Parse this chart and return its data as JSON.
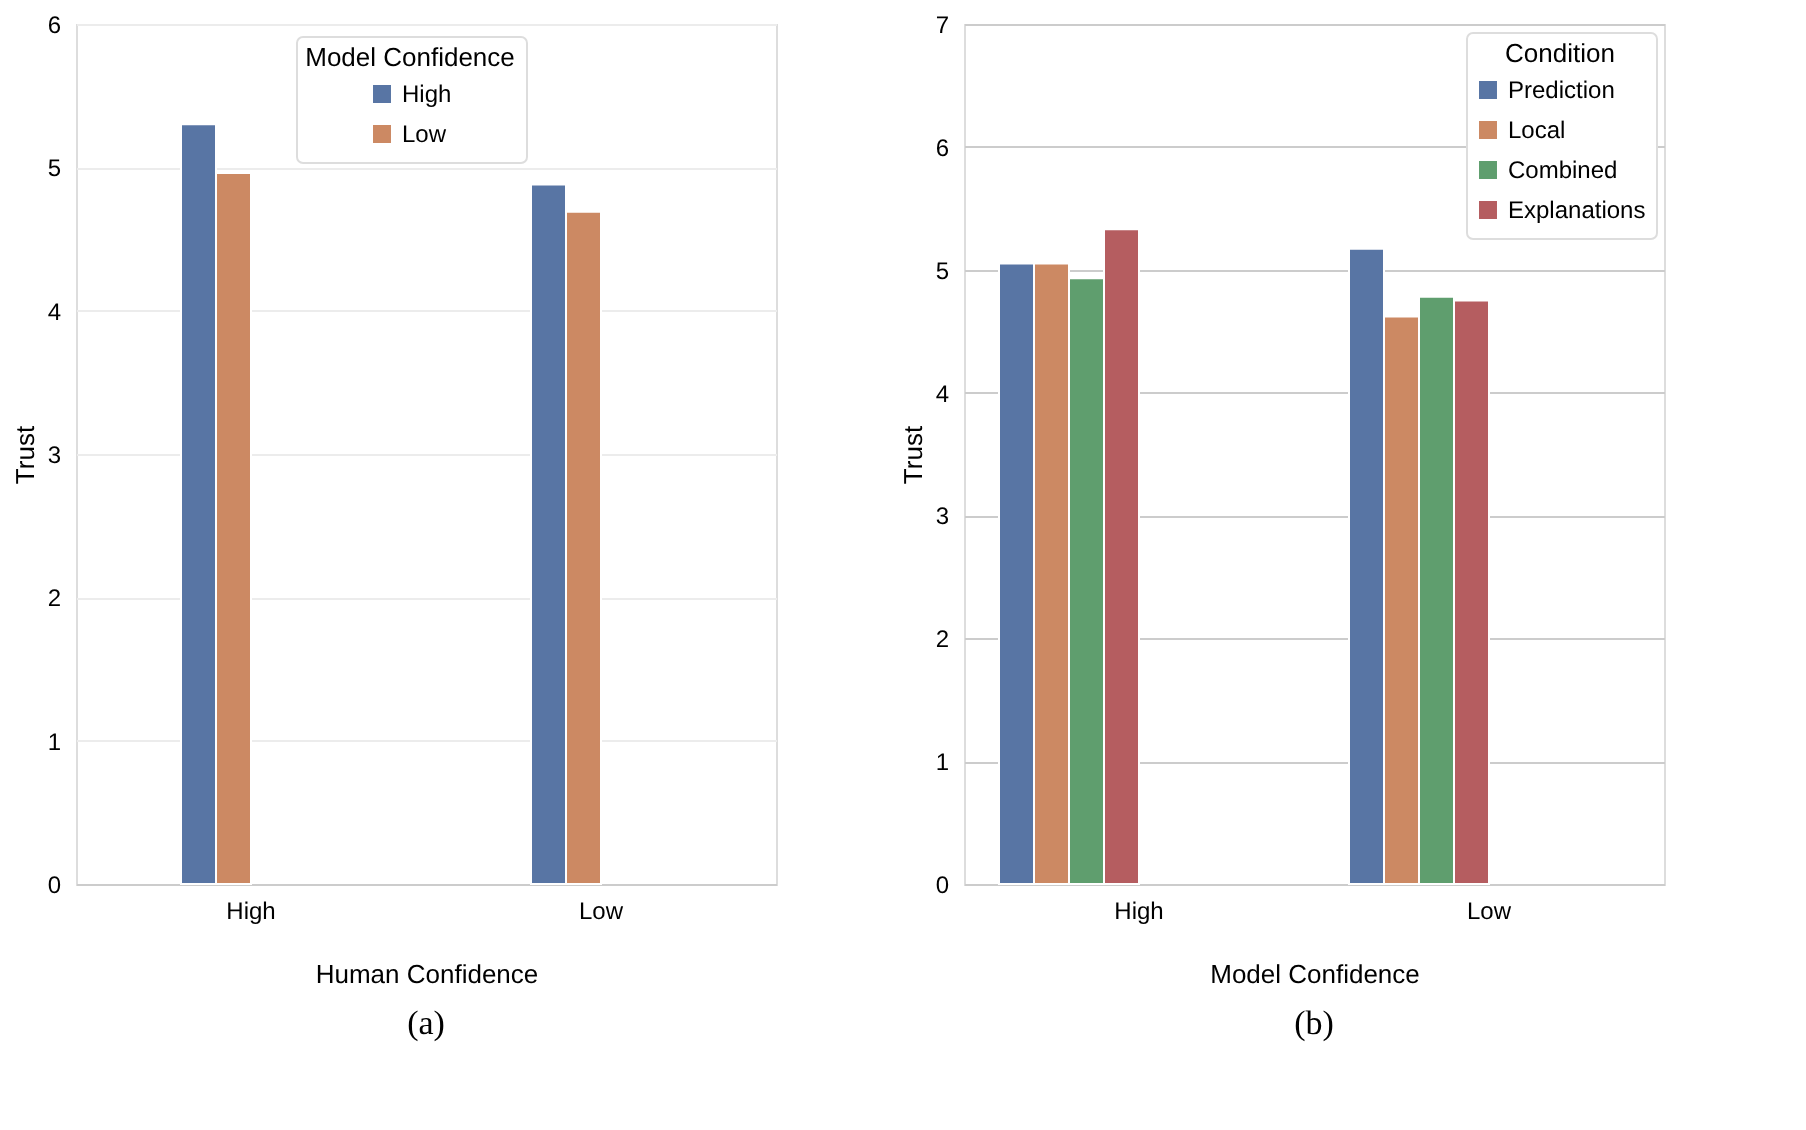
{
  "chart_data": [
    {
      "type": "bar",
      "categories": [
        "High",
        "Low"
      ],
      "xlabel": "Human Confidence",
      "ylabel": "Trust",
      "legend_title": "Model Confidence",
      "legend": "top",
      "grid": "y",
      "ylim": [
        0,
        6
      ],
      "yticks": [
        0,
        1,
        2,
        3,
        4,
        5,
        6
      ],
      "annotations": [
        "(a)"
      ],
      "series": [
        {
          "name": "High",
          "color": "#5875a4",
          "values": [
            5.3,
            4.88
          ]
        },
        {
          "name": "Low",
          "color": "#cc8963",
          "values": [
            4.96,
            4.69
          ]
        }
      ]
    },
    {
      "type": "bar",
      "categories": [
        "High",
        "Low"
      ],
      "xlabel": "Model Confidence",
      "ylabel": "Trust",
      "legend_title": "Condition",
      "legend": "top right",
      "grid": "y",
      "ylim": [
        0,
        7
      ],
      "yticks": [
        0,
        1,
        2,
        3,
        4,
        5,
        6,
        7
      ],
      "annotations": [
        "(b)"
      ],
      "series": [
        {
          "name": "Prediction",
          "color": "#5875a4",
          "values": [
            5.05,
            5.17
          ]
        },
        {
          "name": "Local",
          "color": "#cc8963",
          "values": [
            5.05,
            4.62
          ]
        },
        {
          "name": "Combined",
          "color": "#5f9e6e",
          "values": [
            4.93,
            4.78
          ]
        },
        {
          "name": "Explanations",
          "color": "#b55d60",
          "values": [
            5.33,
            4.75
          ]
        }
      ]
    }
  ]
}
